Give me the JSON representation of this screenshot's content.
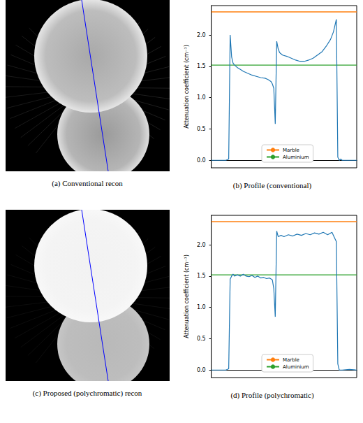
{
  "images": [
    {
      "caption": "(a) Conventional recon",
      "kind": "conventional"
    },
    {
      "caption": "(c) Proposed (polychromatic) recon",
      "kind": "polychromatic"
    }
  ],
  "chart_data": [
    {
      "type": "line",
      "title": "(b) Profile (conventional)",
      "ylabel": "Attenuation coefficient (cm⁻¹)",
      "xlim": [
        0,
        100
      ],
      "ylim": [
        -0.12,
        2.47
      ],
      "yticks": [
        {
          "value": 0,
          "label": "0.0"
        },
        {
          "value": 0.5,
          "label": "0.5"
        },
        {
          "value": 1,
          "label": "1.0"
        },
        {
          "value": 1.5,
          "label": "1.5"
        },
        {
          "value": 2,
          "label": "2.0"
        }
      ],
      "tick_labels": "y",
      "grid": false,
      "legend": "lower center",
      "series": [
        {
          "color": "#1f77b4",
          "x": [
            0,
            5,
            10,
            12,
            13,
            14,
            15,
            16,
            17,
            18,
            20,
            22,
            25,
            28,
            31,
            34,
            37,
            39,
            41,
            42,
            43,
            44,
            45,
            46,
            47,
            49,
            52,
            55,
            58,
            61,
            64,
            67,
            70,
            73,
            76,
            79,
            82,
            84,
            85,
            86,
            87,
            88,
            89,
            90,
            95,
            100
          ],
          "values": [
            0,
            0,
            0,
            0.02,
            2.0,
            1.65,
            1.55,
            1.52,
            1.5,
            1.48,
            1.45,
            1.42,
            1.39,
            1.36,
            1.34,
            1.32,
            1.31,
            1.29,
            1.26,
            1.22,
            1.15,
            0.58,
            1.9,
            1.78,
            1.72,
            1.68,
            1.66,
            1.63,
            1.6,
            1.58,
            1.58,
            1.6,
            1.63,
            1.68,
            1.73,
            1.82,
            1.93,
            2.05,
            2.15,
            2.25,
            0.05,
            0,
            0.02,
            0,
            0,
            0
          ]
        },
        {
          "name": "Marble",
          "color": "#ff7f0e",
          "x": [
            0,
            100
          ],
          "values": [
            2.37,
            2.37
          ]
        },
        {
          "name": "Aluminium",
          "color": "#2ca02c",
          "x": [
            0,
            100
          ],
          "values": [
            1.52,
            1.52
          ]
        }
      ]
    },
    {
      "type": "line",
      "title": "(d) Profile (polychromatic)",
      "ylabel": "Attenuation coefficient (cm⁻¹)",
      "xlim": [
        0,
        100
      ],
      "ylim": [
        -0.12,
        2.47
      ],
      "yticks": [
        {
          "value": 0,
          "label": "0.0"
        },
        {
          "value": 0.5,
          "label": "0.5"
        },
        {
          "value": 1,
          "label": "1.0"
        },
        {
          "value": 1.5,
          "label": "1.5"
        },
        {
          "value": 2,
          "label": "2.0"
        }
      ],
      "tick_labels": "y",
      "grid": false,
      "legend": "lower center",
      "series": [
        {
          "color": "#1f77b4",
          "x": [
            0,
            5,
            10,
            12,
            13,
            14,
            15,
            16,
            18,
            20,
            22,
            24,
            26,
            28,
            30,
            32,
            34,
            36,
            38,
            40,
            42,
            43,
            44,
            45,
            46,
            48,
            50,
            53,
            56,
            59,
            62,
            65,
            68,
            71,
            74,
            77,
            80,
            83,
            85,
            86,
            87,
            88,
            90,
            95,
            100
          ],
          "values": [
            0,
            0,
            0,
            0.02,
            1.45,
            1.5,
            1.53,
            1.5,
            1.52,
            1.5,
            1.53,
            1.5,
            1.49,
            1.51,
            1.48,
            1.5,
            1.47,
            1.48,
            1.46,
            1.47,
            1.44,
            1.3,
            0.85,
            2.22,
            2.13,
            2.15,
            2.13,
            2.16,
            2.14,
            2.17,
            2.15,
            2.18,
            2.16,
            2.19,
            2.17,
            2.2,
            2.16,
            2.2,
            2.1,
            2.05,
            0.1,
            0,
            0,
            0.01,
            0
          ]
        },
        {
          "name": "Marble",
          "color": "#ff7f0e",
          "x": [
            0,
            100
          ],
          "values": [
            2.37,
            2.37
          ]
        },
        {
          "name": "Aluminium",
          "color": "#2ca02c",
          "x": [
            0,
            100
          ],
          "values": [
            1.52,
            1.52
          ]
        }
      ]
    }
  ]
}
